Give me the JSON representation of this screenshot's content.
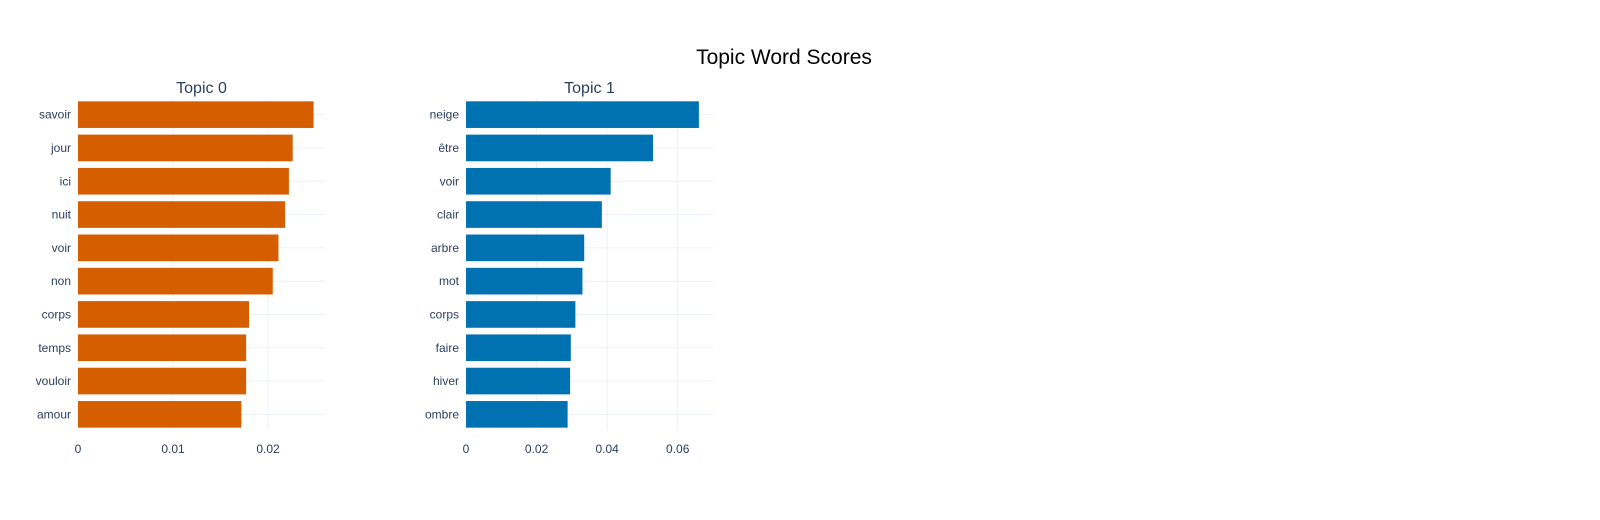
{
  "title": "Topic Word Scores",
  "chart_data": [
    {
      "type": "bar",
      "orientation": "horizontal",
      "title": "Topic 0",
      "color": "#D55E00",
      "categories": [
        "savoir",
        "jour",
        "ici",
        "nuit",
        "voir",
        "non",
        "corps",
        "temps",
        "vouloir",
        "amour"
      ],
      "values": [
        0.0248,
        0.0226,
        0.0222,
        0.0218,
        0.0211,
        0.0205,
        0.018,
        0.0177,
        0.0177,
        0.0172
      ],
      "xlim": [
        0,
        0.026
      ],
      "xticks": [
        0,
        0.01,
        0.02
      ],
      "xtick_labels": [
        "0",
        "0.01",
        "0.02"
      ],
      "grid": true
    },
    {
      "type": "bar",
      "orientation": "horizontal",
      "title": "Topic 1",
      "color": "#0072B2",
      "categories": [
        "neige",
        "être",
        "voir",
        "clair",
        "arbre",
        "mot",
        "corps",
        "faire",
        "hiver",
        "ombre"
      ],
      "values": [
        0.066,
        0.053,
        0.041,
        0.0385,
        0.0335,
        0.033,
        0.031,
        0.0297,
        0.0295,
        0.0288
      ],
      "xlim": [
        0,
        0.07
      ],
      "xticks": [
        0,
        0.02,
        0.04,
        0.06
      ],
      "xtick_labels": [
        "0",
        "0.02",
        "0.04",
        "0.06"
      ],
      "grid": true
    }
  ]
}
